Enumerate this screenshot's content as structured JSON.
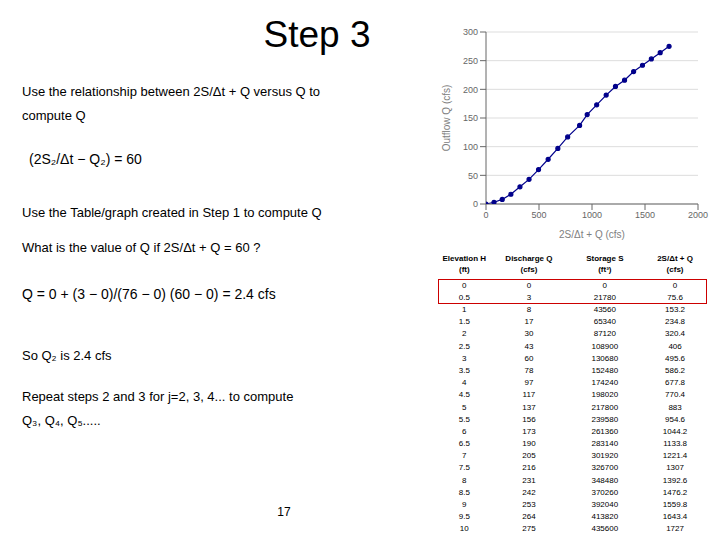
{
  "chart_data": {
    "type": "line",
    "title": "Step 3",
    "x_label": "2S/Δt + Q (cfs)",
    "y_label": "Outflow Q (cfs)",
    "x": [
      0,
      75.6,
      153.2,
      234.8,
      320.4,
      406,
      495.6,
      586.2,
      677.8,
      770.4,
      883,
      954.6,
      1044.2,
      1133.8,
      1221.4,
      1307,
      1392.6,
      1476.2,
      1559.8,
      1643.4,
      1727
    ],
    "values": [
      0,
      3,
      8,
      17,
      30,
      43,
      60,
      78,
      97,
      117,
      137,
      156,
      173,
      190,
      205,
      216,
      231,
      242,
      253,
      264,
      275
    ],
    "color": "#00008B",
    "marker": "circle",
    "line_style": "solid",
    "xlim": [
      0,
      2000
    ],
    "xticks": [
      0,
      500,
      1000,
      1500,
      2000
    ],
    "ylim": [
      0,
      300
    ],
    "yticks": [
      0,
      50,
      100,
      150,
      200,
      250,
      300
    ],
    "grid": "y",
    "annotations": [
      "Use the relationship between 2S/Δt + Q versus Q to",
      "compute Q",
      "(2S₂/Δt − Q₂) = 60",
      "Use the Table/graph created in Step 1 to compute Q",
      "What is the value of Q if 2S/Δt + Q = 60 ?",
      "Q = 0 + (3 − 0)/(76 − 0) (60 − 0) = 2.4 cfs",
      "So Q₂ is 2.4 cfs",
      "Repeat steps 2 and 3 for j=2, 3, 4... to compute",
      "Q₃, Q₄, Q₅.....",
      "17"
    ],
    "table": {
      "headers": [
        "Elevation H",
        "Discharge Q",
        "Storage S",
        "2S/Δt + Q"
      ],
      "subheaders": [
        "(ft)",
        "(cfs)",
        "(ft³)",
        "(cfs)"
      ],
      "rows": [
        [
          0,
          0,
          0,
          0
        ],
        [
          0.5,
          3,
          21780,
          75.6
        ],
        [
          1,
          8,
          43560,
          153.2
        ],
        [
          1.5,
          17,
          65340,
          234.8
        ],
        [
          2,
          30,
          87120,
          320.4
        ],
        [
          2.5,
          43,
          108900,
          406
        ],
        [
          3,
          60,
          130680,
          495.6
        ],
        [
          3.5,
          78,
          152480,
          586.2
        ],
        [
          4,
          97,
          174240,
          677.8
        ],
        [
          4.5,
          117,
          198020,
          770.4
        ],
        [
          5,
          137,
          217800,
          883
        ],
        [
          5.5,
          156,
          239580,
          954.6
        ],
        [
          6,
          173,
          261360,
          1044.2
        ],
        [
          6.5,
          190,
          283140,
          1133.8
        ],
        [
          7,
          205,
          301920,
          1221.4
        ],
        [
          7.5,
          216,
          326700,
          1307
        ],
        [
          8,
          231,
          348480,
          1392.6
        ],
        [
          8.5,
          242,
          370260,
          1476.2
        ],
        [
          9,
          253,
          392040,
          1559.8
        ],
        [
          9.5,
          264,
          413820,
          1643.4
        ],
        [
          10,
          275,
          435600,
          1727
        ]
      ],
      "highlight_color": "#cc0000"
    }
  }
}
